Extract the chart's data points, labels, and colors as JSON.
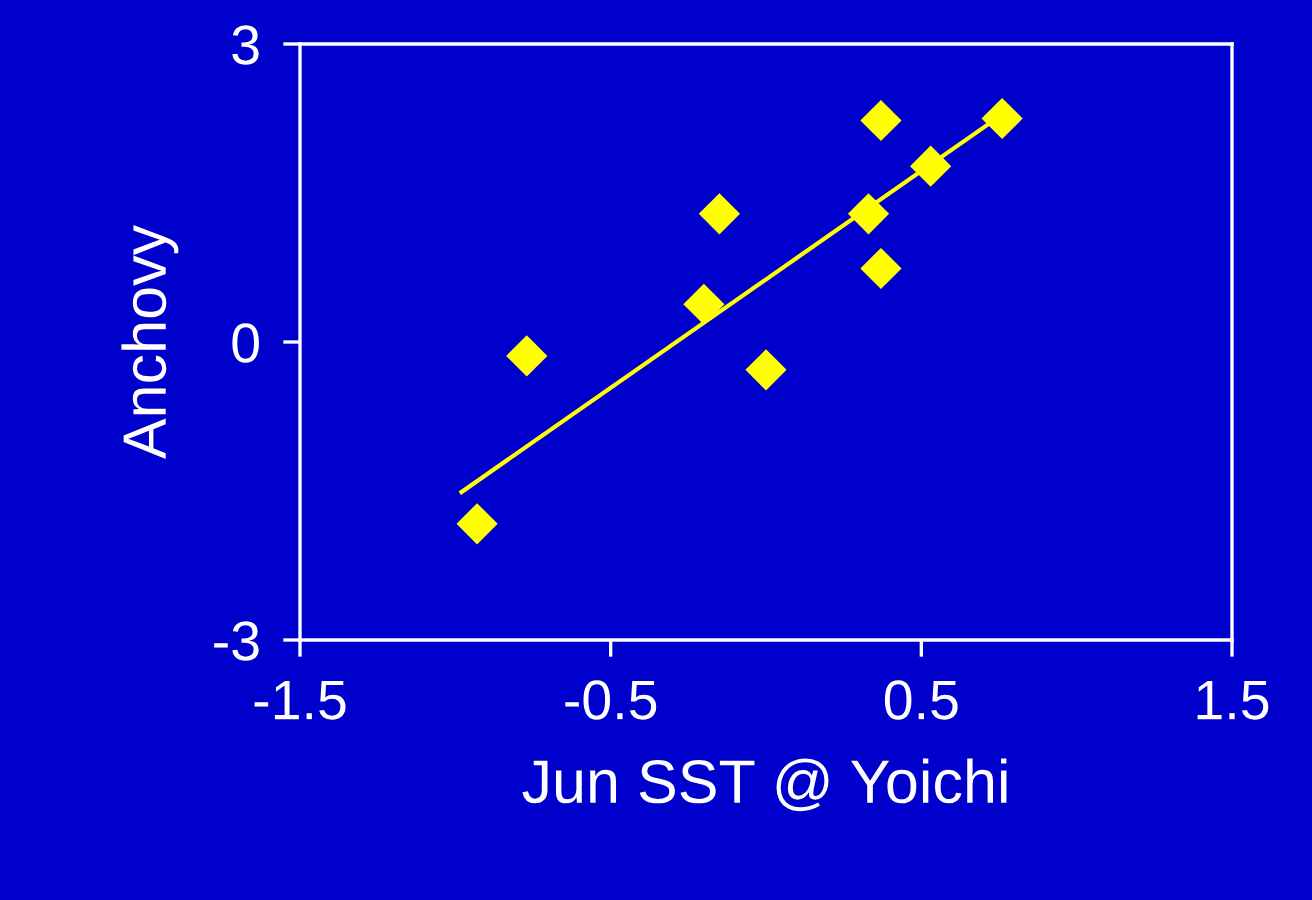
{
  "chart_data": {
    "type": "scatter",
    "xlabel": "Jun SST @ Yoichi",
    "ylabel": "Anchovy",
    "xlim": [
      -1.5,
      1.5
    ],
    "xticks": [
      -1.5,
      -0.5,
      0.5,
      1.5
    ],
    "ylim": [
      -3,
      3
    ],
    "yticks": [
      -3,
      0,
      3
    ],
    "grid": false,
    "series": [
      {
        "marker": "diamond",
        "color": "#ffff00",
        "x": [
          -0.93,
          -0.77,
          -0.2,
          -0.15,
          0.0,
          0.33,
          0.37,
          0.37,
          0.53,
          0.76
        ],
        "values": [
          -1.83,
          -0.14,
          0.38,
          1.29,
          -0.28,
          1.29,
          2.23,
          0.74,
          1.77,
          2.25
        ]
      },
      {
        "type": "line",
        "color": "#ffff00",
        "x": [
          -0.98,
          0.76
        ],
        "values": [
          -1.51,
          2.29
        ]
      }
    ]
  }
}
